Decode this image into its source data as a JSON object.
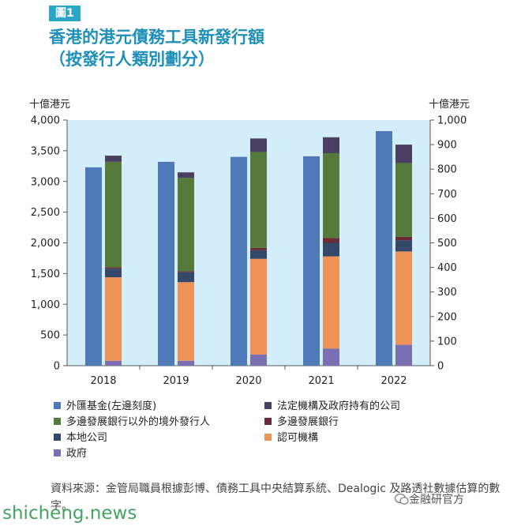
{
  "figure_label": "圖1",
  "title_line1": "香港的港元債務工具新發行額",
  "title_line2": "（按發行人類別劃分）",
  "left_unit": "十億港元",
  "right_unit": "十億港元",
  "colors": {
    "bg": "#d3eef8",
    "exchange_fund": "#4f7ab8",
    "government": "#7b6fb3",
    "authorized": "#ef9359",
    "local_corp": "#34486a",
    "mdb": "#6b2a35",
    "overseas": "#567a3a",
    "statutory": "#4a3f63"
  },
  "chart_data": {
    "type": "bar",
    "categories": [
      "2018",
      "2019",
      "2020",
      "2021",
      "2022"
    ],
    "left_axis": {
      "ylim": [
        0,
        4000
      ],
      "ticks": [
        "0",
        "500",
        "1,000",
        "1,500",
        "2,000",
        "2,500",
        "3,000",
        "3,500",
        "4,000"
      ]
    },
    "right_axis": {
      "ylim": [
        0,
        1000
      ],
      "ticks": [
        "0",
        "100",
        "200",
        "300",
        "400",
        "500",
        "600",
        "700",
        "800",
        "900",
        "1,000"
      ]
    },
    "left_series": [
      {
        "name": "外匯基金(左邊刻度)",
        "color_key": "exchange_fund",
        "values": [
          3230,
          3320,
          3400,
          3410,
          3820
        ]
      }
    ],
    "stacked_right_series": [
      {
        "name": "政府",
        "color_key": "government",
        "values": [
          20,
          20,
          45,
          70,
          85
        ]
      },
      {
        "name": "認可機構",
        "color_key": "authorized",
        "values": [
          340,
          320,
          390,
          375,
          380
        ]
      },
      {
        "name": "本地公司",
        "color_key": "local_corp",
        "values": [
          35,
          40,
          35,
          55,
          45
        ]
      },
      {
        "name": "多邊發展銀行",
        "color_key": "mdb",
        "values": [
          5,
          5,
          10,
          20,
          15
        ]
      },
      {
        "name": "多邊發展銀行以外的境外發行人",
        "color_key": "overseas",
        "values": [
          430,
          380,
          390,
          345,
          300
        ]
      },
      {
        "name": "法定機構及政府持有的公司",
        "color_key": "statutory",
        "values": [
          25,
          22,
          55,
          65,
          75
        ]
      }
    ]
  },
  "legend": [
    {
      "label": "外匯基金(左邊刻度)",
      "color_key": "exchange_fund"
    },
    {
      "label": "法定機構及政府持有的公司",
      "color_key": "statutory"
    },
    {
      "label": "多邊發展銀行以外的境外發行人",
      "color_key": "overseas"
    },
    {
      "label": "多邊發展銀行",
      "color_key": "mdb"
    },
    {
      "label": "本地公司",
      "color_key": "local_corp"
    },
    {
      "label": "認可機構",
      "color_key": "authorized"
    },
    {
      "label": "政府",
      "color_key": "government"
    }
  ],
  "source_text": "資料來源：金管局職員根據彭博、債務工具中央結算系統、Dealogic 及路透社數據估算的數字。",
  "watermark_left": "shicheng.news",
  "watermark_right": "金融研官方"
}
